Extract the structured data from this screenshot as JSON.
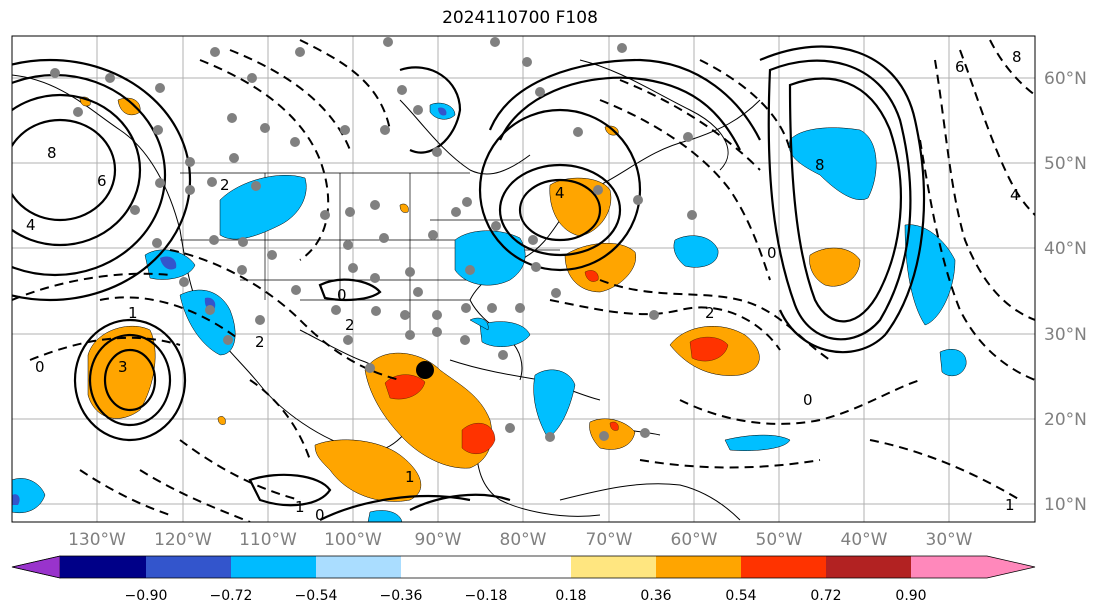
{
  "title": "2024110700 F108",
  "lon_labels": [
    "130°W",
    "120°W",
    "110°W",
    "100°W",
    "90°W",
    "80°W",
    "70°W",
    "60°W",
    "50°W",
    "40°W",
    "30°W"
  ],
  "lat_labels": [
    "60°N",
    "50°N",
    "40°N",
    "30°N",
    "20°N",
    "10°N"
  ],
  "colorbar": {
    "ticks": [
      "−0.90",
      "−0.72",
      "−0.54",
      "−0.36",
      "−0.18",
      "0.18",
      "0.36",
      "0.54",
      "0.72",
      "0.90"
    ],
    "colors": [
      "#9933cc",
      "#000088",
      "#3355cc",
      "#00bbff",
      "#aaddff",
      "#ffffff",
      "#ffe680",
      "#ffa500",
      "#ff3300",
      "#b22222",
      "#ff88bb"
    ]
  },
  "contour_labels": [
    "8",
    "6",
    "4",
    "2",
    "1",
    "0",
    "2",
    "3",
    "0",
    "1",
    "8",
    "4",
    "6",
    "8",
    "4",
    "2",
    "0",
    "2",
    "1",
    "0",
    "1",
    "0"
  ],
  "fill_colors": {
    "light_blue": "#00bfff",
    "orange": "#ffa500",
    "red": "#ff3300",
    "purple_blue": "#3355cc"
  }
}
